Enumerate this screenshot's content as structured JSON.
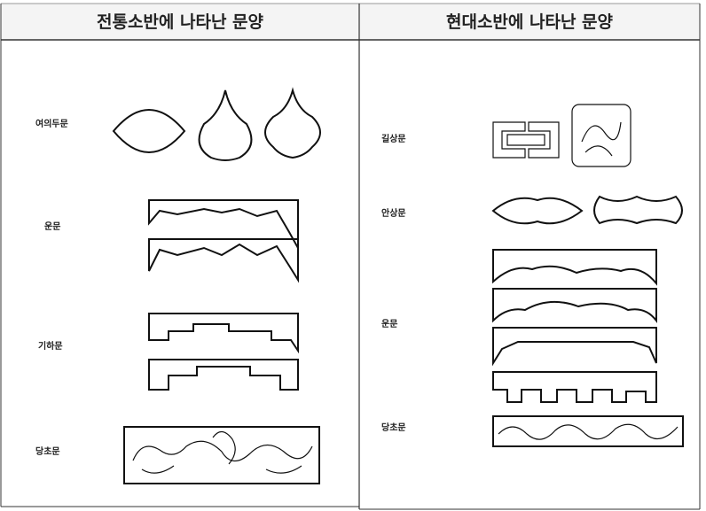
{
  "header": {
    "left": "전통소반에 나타난 문양",
    "right": "현대소반에 나타난 문양"
  },
  "left_rows": [
    {
      "label": "여의두문"
    },
    {
      "label": "운문"
    },
    {
      "label": "기하문"
    },
    {
      "label": "당초문"
    }
  ],
  "right_rows": [
    {
      "label": "길상문"
    },
    {
      "label": "안상문"
    },
    {
      "label": "운문"
    },
    {
      "label": "당초문"
    }
  ]
}
